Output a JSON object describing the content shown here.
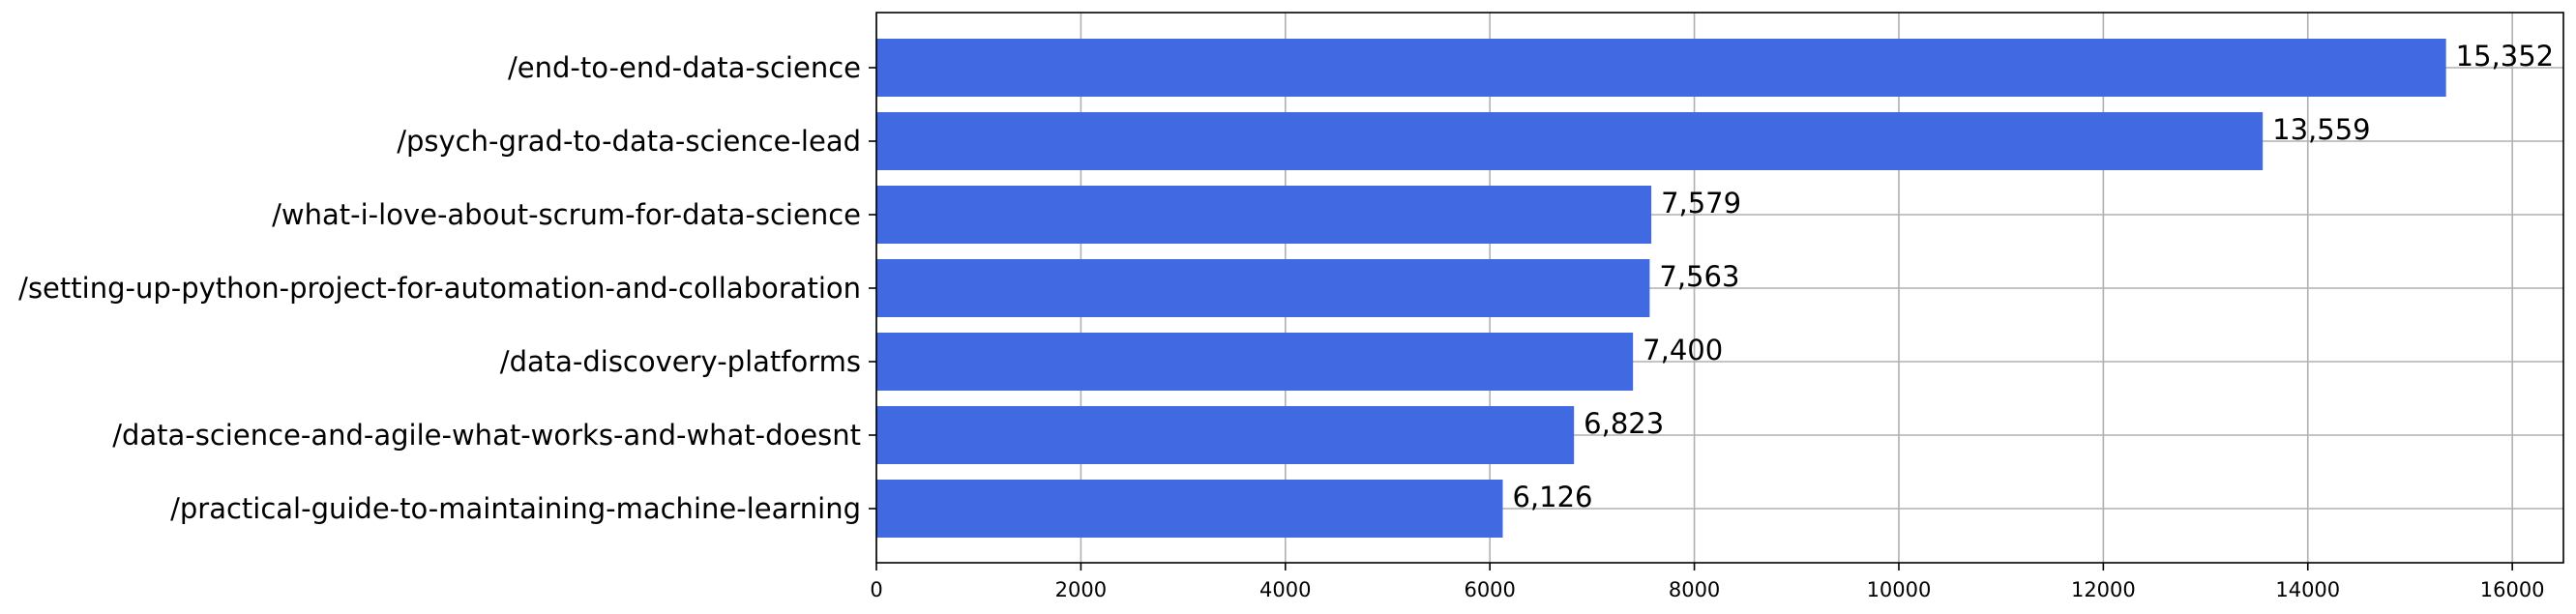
{
  "chart_data": {
    "type": "bar",
    "orientation": "horizontal",
    "title": "",
    "xlabel": "",
    "ylabel": "",
    "categories": [
      "/end-to-end-data-science",
      "/psych-grad-to-data-science-lead",
      "/what-i-love-about-scrum-for-data-science",
      "/setting-up-python-project-for-automation-and-collaboration",
      "/data-discovery-platforms",
      "/data-science-and-agile-what-works-and-what-doesnt",
      "/practical-guide-to-maintaining-machine-learning"
    ],
    "values": [
      15352,
      13559,
      7579,
      7563,
      7400,
      6823,
      6126
    ],
    "value_labels": [
      "15,352",
      "13,559",
      "7,579",
      "7,563",
      "7,400",
      "6,823",
      "6,126"
    ],
    "x_ticks": [
      0,
      2000,
      4000,
      6000,
      8000,
      10000,
      12000,
      14000,
      16000
    ],
    "x_tick_labels": [
      "0",
      "2000",
      "4000",
      "6000",
      "8000",
      "10000",
      "12000",
      "14000",
      "16000"
    ],
    "xlim": [
      0,
      16500
    ],
    "grid": true,
    "legend": "none",
    "bar_color": "#4169e1",
    "grid_color": "#b0b0b0"
  }
}
